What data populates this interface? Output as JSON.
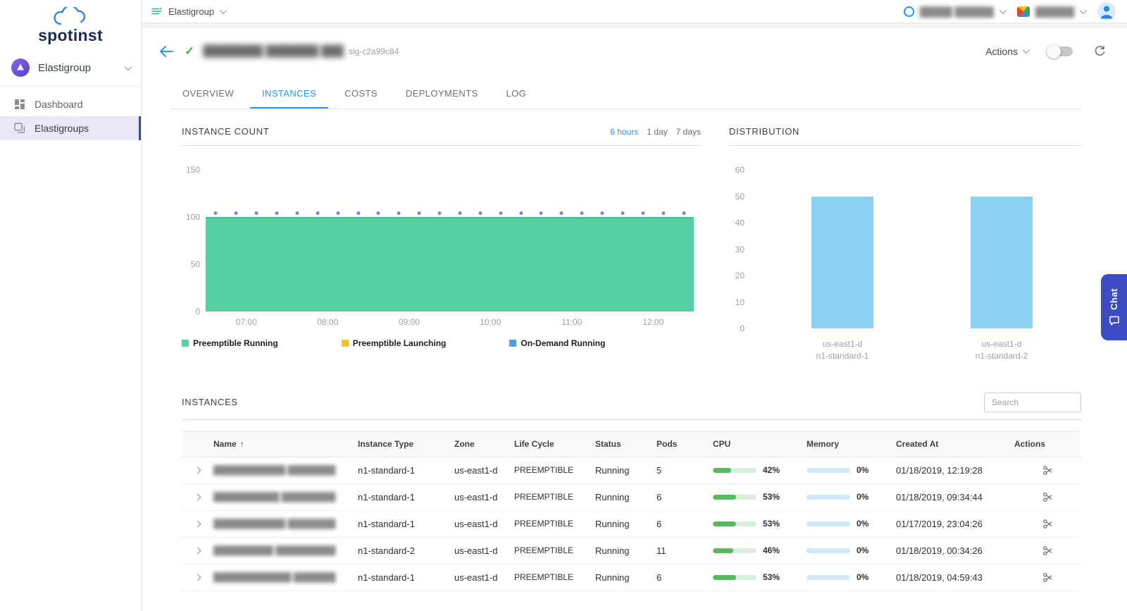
{
  "colors": {
    "accent_blue": "#2196f3",
    "area_green": "#57d0a2",
    "marker_purple": "#7b87d4",
    "bar_blue": "#8bd2f2",
    "sidebar_active_bg": "#ebe8f9",
    "chat_indigo": "#3d4cc3"
  },
  "sidebar": {
    "logo_text": "spotinst",
    "product_selector": "Elastigroup",
    "items": [
      {
        "label": "Dashboard",
        "active": false
      },
      {
        "label": "Elastigroups",
        "active": true
      }
    ]
  },
  "topbar": {
    "context": "Elastigroup",
    "account_name": "█████ ██████",
    "cloud_account": "██████"
  },
  "header": {
    "group_name": "████████ ███████ ███",
    "group_id": "sig-c2a99c84",
    "actions_label": "Actions"
  },
  "tabs": [
    {
      "label": "OVERVIEW",
      "active": false
    },
    {
      "label": "INSTANCES",
      "active": true
    },
    {
      "label": "COSTS",
      "active": false
    },
    {
      "label": "DEPLOYMENTS",
      "active": false
    },
    {
      "label": "LOG",
      "active": false
    }
  ],
  "chart_data": [
    {
      "type": "area",
      "title": "INSTANCE COUNT",
      "time_ranges": [
        "6 hours",
        "1 day",
        "7 days"
      ],
      "active_range": "6 hours",
      "x_ticks": [
        "07:00",
        "08:00",
        "09:00",
        "10:00",
        "11:00",
        "12:00"
      ],
      "y_ticks": [
        150,
        100,
        50,
        0
      ],
      "ylim": [
        0,
        150
      ],
      "series": [
        {
          "name": "Preemptible Running",
          "color": "#57d0a2",
          "approx_value": 100
        },
        {
          "name": "Preemptible Launching",
          "color": "#f2c230",
          "approx_value": 0
        },
        {
          "name": "On-Demand Running",
          "color": "#4f9fd8",
          "approx_value": 0
        }
      ],
      "marker_value": 100,
      "marker_count": 24
    },
    {
      "type": "bar",
      "title": "DISTRIBUTION",
      "categories": [
        [
          "us-east1-d",
          "n1-standard-1"
        ],
        [
          "us-east1-d",
          "n1-standard-2"
        ]
      ],
      "values": [
        50,
        50
      ],
      "y_ticks": [
        60,
        50,
        40,
        30,
        20,
        10,
        0
      ],
      "ylim": [
        0,
        60
      ],
      "bar_color": "#8bd2f2"
    }
  ],
  "instances": {
    "title": "INSTANCES",
    "search_placeholder": "Search",
    "columns": [
      "Name",
      "Instance Type",
      "Zone",
      "Life Cycle",
      "Status",
      "Pods",
      "CPU",
      "Memory",
      "Created At",
      "Actions"
    ],
    "sort_column": "Name",
    "rows": [
      {
        "name": "████████████ ████████",
        "instance_type": "n1-standard-1",
        "zone": "us-east1-d",
        "life_cycle": "PREEMPTIBLE",
        "status": "Running",
        "pods": "5",
        "cpu_pct": 42,
        "memory_pct": 0,
        "created_at": "01/18/2019, 12:19:28"
      },
      {
        "name": "███████████ █████████",
        "instance_type": "n1-standard-1",
        "zone": "us-east1-d",
        "life_cycle": "PREEMPTIBLE",
        "status": "Running",
        "pods": "6",
        "cpu_pct": 53,
        "memory_pct": 0,
        "created_at": "01/18/2019, 09:34:44"
      },
      {
        "name": "████████████ ████████",
        "instance_type": "n1-standard-1",
        "zone": "us-east1-d",
        "life_cycle": "PREEMPTIBLE",
        "status": "Running",
        "pods": "6",
        "cpu_pct": 53,
        "memory_pct": 0,
        "created_at": "01/17/2019, 23:04:26"
      },
      {
        "name": "██████████ ██████████",
        "instance_type": "n1-standard-2",
        "zone": "us-east1-d",
        "life_cycle": "PREEMPTIBLE",
        "status": "Running",
        "pods": "11",
        "cpu_pct": 46,
        "memory_pct": 0,
        "created_at": "01/18/2019, 00:34:26"
      },
      {
        "name": "█████████████ ███████",
        "instance_type": "n1-standard-1",
        "zone": "us-east1-d",
        "life_cycle": "PREEMPTIBLE",
        "status": "Running",
        "pods": "6",
        "cpu_pct": 53,
        "memory_pct": 0,
        "created_at": "01/18/2019, 04:59:43"
      }
    ]
  },
  "chat": {
    "label": "Chat"
  }
}
